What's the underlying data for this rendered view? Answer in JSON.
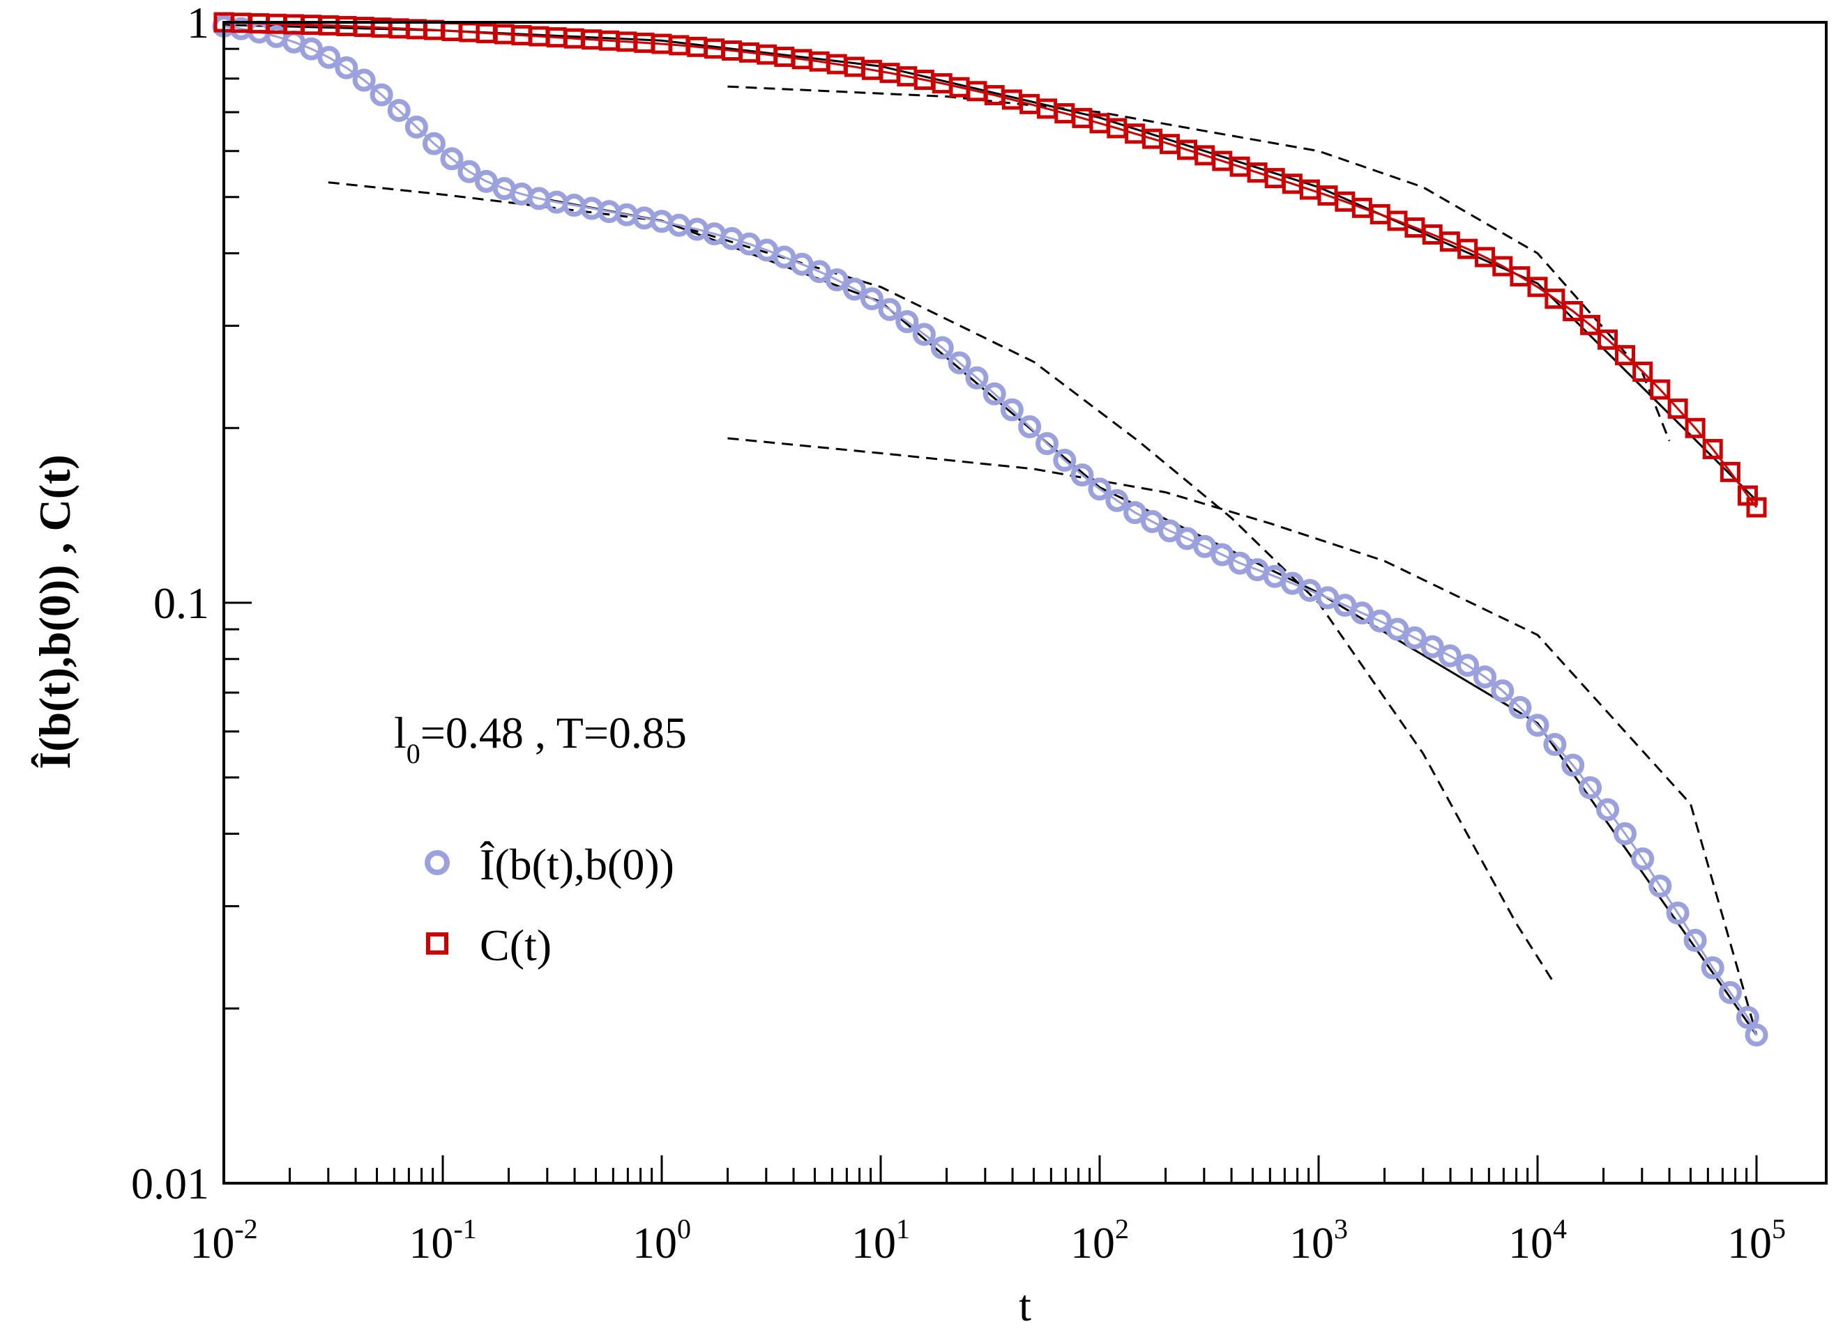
{
  "chart_data": {
    "type": "line",
    "scale": {
      "x": "log",
      "y": "log"
    },
    "xlim": [
      0.01,
      100000
    ],
    "ylim": [
      0.01,
      1
    ],
    "xlabel": "t",
    "ylabel": "Î(b(t),b(0)) , C(t)",
    "x_ticks": [
      {
        "base": "10",
        "exp": "-2"
      },
      {
        "base": "10",
        "exp": "-1"
      },
      {
        "base": "10",
        "exp": "0"
      },
      {
        "base": "10",
        "exp": "1"
      },
      {
        "base": "10",
        "exp": "2"
      },
      {
        "base": "10",
        "exp": "3"
      },
      {
        "base": "10",
        "exp": "4"
      },
      {
        "base": "10",
        "exp": "5"
      }
    ],
    "y_ticks": [
      {
        "value": 0.01,
        "label": "0.01"
      },
      {
        "value": 0.1,
        "label": "0.1"
      },
      {
        "value": 1,
        "label": "1"
      }
    ],
    "annotation": {
      "base": "l",
      "sub": "0",
      "rest": "=0.48 , T=0.85"
    },
    "legend": {
      "position": "center-left",
      "entries": [
        {
          "label": "Î(b(t),b(0))",
          "marker": "circle",
          "color": "#9aa1dd"
        },
        {
          "label": "C(t)",
          "marker": "square",
          "color": "#cc0000"
        }
      ]
    },
    "series": [
      {
        "name": "Î(b(t),b(0))",
        "marker": "circle",
        "color": "#9aa1dd",
        "points": [
          [
            0.01,
            0.985
          ],
          [
            0.012,
            0.975
          ],
          [
            0.0145,
            0.962
          ],
          [
            0.0174,
            0.945
          ],
          [
            0.0209,
            0.925
          ],
          [
            0.0251,
            0.9
          ],
          [
            0.0302,
            0.87
          ],
          [
            0.0363,
            0.835
          ],
          [
            0.0437,
            0.795
          ],
          [
            0.0525,
            0.75
          ],
          [
            0.0631,
            0.705
          ],
          [
            0.0759,
            0.66
          ],
          [
            0.0912,
            0.618
          ],
          [
            0.11,
            0.582
          ],
          [
            0.132,
            0.553
          ],
          [
            0.158,
            0.532
          ],
          [
            0.191,
            0.517
          ],
          [
            0.229,
            0.506
          ],
          [
            0.275,
            0.497
          ],
          [
            0.331,
            0.49
          ],
          [
            0.398,
            0.484
          ],
          [
            0.479,
            0.478
          ],
          [
            0.575,
            0.472
          ],
          [
            0.692,
            0.466
          ],
          [
            0.832,
            0.46
          ],
          [
            1.0,
            0.454
          ],
          [
            1.2,
            0.447
          ],
          [
            1.45,
            0.44
          ],
          [
            1.74,
            0.432
          ],
          [
            2.09,
            0.424
          ],
          [
            2.51,
            0.415
          ],
          [
            3.02,
            0.405
          ],
          [
            3.63,
            0.394
          ],
          [
            4.37,
            0.383
          ],
          [
            5.25,
            0.372
          ],
          [
            6.31,
            0.36
          ],
          [
            7.59,
            0.347
          ],
          [
            9.12,
            0.334
          ],
          [
            11.0,
            0.32
          ],
          [
            13.2,
            0.305
          ],
          [
            15.8,
            0.29
          ],
          [
            19.1,
            0.275
          ],
          [
            22.9,
            0.259
          ],
          [
            27.5,
            0.244
          ],
          [
            33.1,
            0.229
          ],
          [
            39.8,
            0.215
          ],
          [
            47.9,
            0.201
          ],
          [
            57.5,
            0.188
          ],
          [
            69.2,
            0.176
          ],
          [
            83.2,
            0.166
          ],
          [
            100,
            0.157
          ],
          [
            120,
            0.15
          ],
          [
            145,
            0.143
          ],
          [
            174,
            0.138
          ],
          [
            209,
            0.133
          ],
          [
            251,
            0.129
          ],
          [
            302,
            0.125
          ],
          [
            363,
            0.121
          ],
          [
            437,
            0.117
          ],
          [
            525,
            0.114
          ],
          [
            631,
            0.111
          ],
          [
            759,
            0.108
          ],
          [
            912,
            0.105
          ],
          [
            1100,
            0.102
          ],
          [
            1320,
            0.099
          ],
          [
            1580,
            0.096
          ],
          [
            1910,
            0.093
          ],
          [
            2290,
            0.09
          ],
          [
            2750,
            0.087
          ],
          [
            3310,
            0.084
          ],
          [
            3980,
            0.081
          ],
          [
            4790,
            0.078
          ],
          [
            5750,
            0.0745
          ],
          [
            6920,
            0.0705
          ],
          [
            8320,
            0.066
          ],
          [
            10000,
            0.0615
          ],
          [
            12000,
            0.057
          ],
          [
            14500,
            0.0525
          ],
          [
            17400,
            0.048
          ],
          [
            20900,
            0.044
          ],
          [
            25100,
            0.04
          ],
          [
            30200,
            0.0362
          ],
          [
            36300,
            0.0325
          ],
          [
            43700,
            0.0292
          ],
          [
            52500,
            0.0262
          ],
          [
            63100,
            0.0235
          ],
          [
            75900,
            0.0213
          ],
          [
            91200,
            0.0193
          ],
          [
            100000,
            0.018
          ]
        ]
      },
      {
        "name": "C(t)",
        "marker": "square",
        "color": "#cc0000",
        "points": [
          [
            0.01,
            1.0
          ],
          [
            0.012,
            0.998
          ],
          [
            0.0145,
            0.996
          ],
          [
            0.0174,
            0.994
          ],
          [
            0.0209,
            0.992
          ],
          [
            0.0251,
            0.99
          ],
          [
            0.0302,
            0.988
          ],
          [
            0.0363,
            0.985
          ],
          [
            0.0437,
            0.982
          ],
          [
            0.0525,
            0.979
          ],
          [
            0.0631,
            0.976
          ],
          [
            0.0759,
            0.973
          ],
          [
            0.0912,
            0.97
          ],
          [
            0.11,
            0.966
          ],
          [
            0.132,
            0.962
          ],
          [
            0.158,
            0.958
          ],
          [
            0.191,
            0.954
          ],
          [
            0.229,
            0.95
          ],
          [
            0.275,
            0.946
          ],
          [
            0.331,
            0.942
          ],
          [
            0.398,
            0.938
          ],
          [
            0.479,
            0.934
          ],
          [
            0.575,
            0.93
          ],
          [
            0.692,
            0.926
          ],
          [
            0.832,
            0.922
          ],
          [
            1.0,
            0.918
          ],
          [
            1.2,
            0.913
          ],
          [
            1.45,
            0.907
          ],
          [
            1.74,
            0.901
          ],
          [
            2.09,
            0.894
          ],
          [
            2.51,
            0.887
          ],
          [
            3.02,
            0.88
          ],
          [
            3.63,
            0.872
          ],
          [
            4.37,
            0.864
          ],
          [
            5.25,
            0.856
          ],
          [
            6.31,
            0.847
          ],
          [
            7.59,
            0.838
          ],
          [
            9.12,
            0.828
          ],
          [
            11.0,
            0.818
          ],
          [
            13.2,
            0.807
          ],
          [
            15.8,
            0.796
          ],
          [
            19.1,
            0.785
          ],
          [
            22.9,
            0.773
          ],
          [
            27.5,
            0.761
          ],
          [
            33.1,
            0.749
          ],
          [
            39.8,
            0.736
          ],
          [
            47.9,
            0.723
          ],
          [
            57.5,
            0.71
          ],
          [
            69.2,
            0.697
          ],
          [
            83.2,
            0.684
          ],
          [
            100,
            0.67
          ],
          [
            120,
            0.657
          ],
          [
            145,
            0.643
          ],
          [
            174,
            0.63
          ],
          [
            209,
            0.617
          ],
          [
            251,
            0.603
          ],
          [
            302,
            0.59
          ],
          [
            363,
            0.577
          ],
          [
            437,
            0.564
          ],
          [
            525,
            0.551
          ],
          [
            631,
            0.539
          ],
          [
            759,
            0.527
          ],
          [
            912,
            0.515
          ],
          [
            1100,
            0.503
          ],
          [
            1320,
            0.491
          ],
          [
            1580,
            0.479
          ],
          [
            1910,
            0.467
          ],
          [
            2290,
            0.455
          ],
          [
            2750,
            0.443
          ],
          [
            3310,
            0.431
          ],
          [
            3980,
            0.419
          ],
          [
            4790,
            0.407
          ],
          [
            5750,
            0.394
          ],
          [
            6920,
            0.38
          ],
          [
            8320,
            0.365
          ],
          [
            10000,
            0.35
          ],
          [
            12000,
            0.334
          ],
          [
            14500,
            0.318
          ],
          [
            17400,
            0.301
          ],
          [
            20900,
            0.284
          ],
          [
            25100,
            0.267
          ],
          [
            30200,
            0.25
          ],
          [
            36300,
            0.233
          ],
          [
            43700,
            0.216
          ],
          [
            52500,
            0.2
          ],
          [
            63100,
            0.184
          ],
          [
            75900,
            0.168
          ],
          [
            91200,
            0.153
          ],
          [
            100000,
            0.146
          ]
        ]
      }
    ],
    "fits": [
      {
        "name": "fit-c",
        "style": "solid",
        "points": [
          [
            0.01,
            0.99
          ],
          [
            0.1,
            0.968
          ],
          [
            1,
            0.93
          ],
          [
            10,
            0.84
          ],
          [
            100,
            0.685
          ],
          [
            1000,
            0.52
          ],
          [
            10000,
            0.355
          ],
          [
            100000,
            0.15
          ]
        ]
      },
      {
        "name": "fit-i",
        "style": "solid",
        "points": [
          [
            0.3,
            0.495
          ],
          [
            1,
            0.455
          ],
          [
            10,
            0.33
          ],
          [
            100,
            0.158
          ],
          [
            1000,
            0.104
          ],
          [
            10000,
            0.062
          ],
          [
            100000,
            0.018
          ]
        ]
      },
      {
        "name": "kww-c-plateau",
        "style": "dashed",
        "points": [
          [
            2,
            0.775
          ],
          [
            20,
            0.745
          ],
          [
            100,
            0.7
          ],
          [
            300,
            0.65
          ],
          [
            1000,
            0.6
          ],
          [
            3000,
            0.52
          ],
          [
            10000,
            0.4
          ],
          [
            30000,
            0.25
          ],
          [
            40000,
            0.19
          ]
        ]
      },
      {
        "name": "kww-i-plateau",
        "style": "dashed",
        "points": [
          [
            0.03,
            0.53
          ],
          [
            0.1,
            0.505
          ],
          [
            1,
            0.455
          ],
          [
            10,
            0.35
          ],
          [
            50,
            0.26
          ],
          [
            150,
            0.19
          ],
          [
            400,
            0.14
          ],
          [
            1000,
            0.1
          ],
          [
            3000,
            0.055
          ],
          [
            8000,
            0.028
          ],
          [
            12000,
            0.022
          ]
        ]
      },
      {
        "name": "kww-i-second",
        "style": "dashed",
        "points": [
          [
            2,
            0.192
          ],
          [
            10,
            0.181
          ],
          [
            50,
            0.17
          ],
          [
            200,
            0.155
          ],
          [
            600,
            0.137
          ],
          [
            2000,
            0.118
          ],
          [
            10000,
            0.088
          ],
          [
            50000,
            0.045
          ],
          [
            100000,
            0.018
          ]
        ]
      }
    ]
  }
}
